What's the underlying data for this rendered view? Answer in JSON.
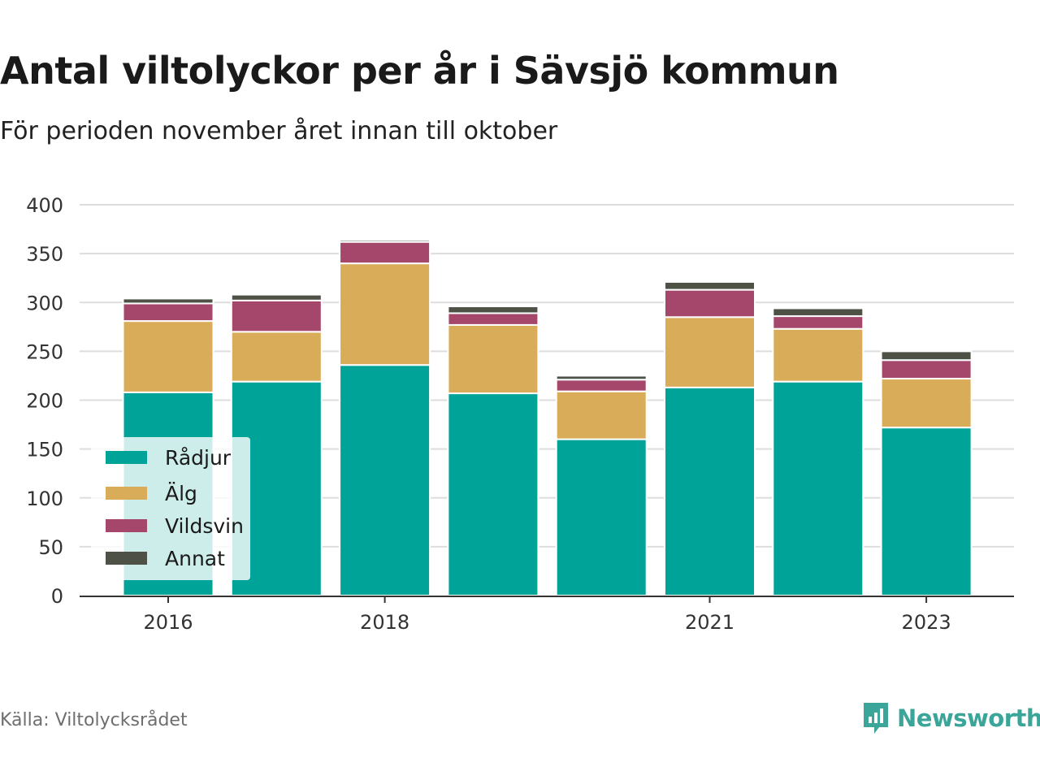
{
  "title": "Antal viltolyckor per år i Sävsjö kommun",
  "subtitle": "För perioden november året innan till oktober",
  "source": "Källa: Viltolycksrådet",
  "brand": "Newsworthy",
  "colors": {
    "Rådjur": "#00a398",
    "Älg": "#d9ac5a",
    "Vildsvin": "#a5466b",
    "Annat": "#4e5246",
    "brand": "#3aa598"
  },
  "chart_data": {
    "type": "bar",
    "stacked": true,
    "categories": [
      "2016",
      "2017",
      "2018",
      "2019",
      "2020",
      "2021",
      "2022",
      "2023"
    ],
    "x_tick_labels": [
      "2016",
      "2018",
      "2021",
      "2023"
    ],
    "ylim": [
      0,
      400
    ],
    "y_ticks": [
      0,
      50,
      100,
      150,
      200,
      250,
      300,
      350,
      400
    ],
    "grid": true,
    "legend_position": "bottom-left",
    "series": [
      {
        "name": "Rådjur",
        "values": [
          208,
          219,
          236,
          207,
          160,
          213,
          219,
          172
        ]
      },
      {
        "name": "Älg",
        "values": [
          73,
          51,
          104,
          70,
          49,
          72,
          54,
          50
        ]
      },
      {
        "name": "Vildsvin",
        "values": [
          18,
          32,
          22,
          12,
          12,
          28,
          13,
          19
        ]
      },
      {
        "name": "Annat",
        "values": [
          5,
          6,
          2,
          7,
          4,
          8,
          8,
          9
        ]
      }
    ]
  }
}
